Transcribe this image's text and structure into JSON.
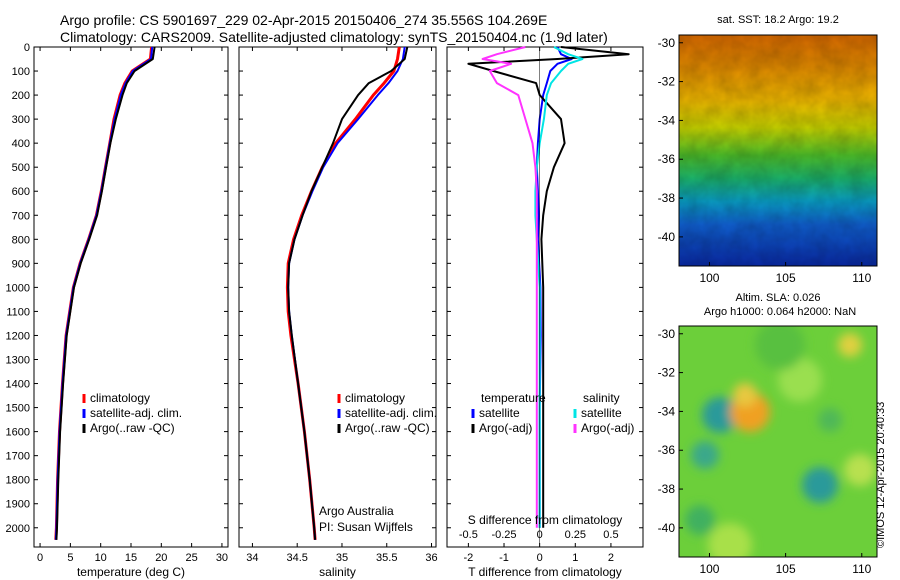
{
  "header": {
    "line1": "Argo profile: CS 5901697_229 02-Apr-2015 20150406_274 35.556S 104.269E",
    "line2": "Climatology: CARS2009. Satellite-adjusted climatology: synTS_20150404.nc (1.9d later)"
  },
  "colors": {
    "climatology": "#ff0000",
    "satellite": "#0000ff",
    "argo": "#000000",
    "sat_salinity": "#00e5e5",
    "argo_salinity": "#ff33ff"
  },
  "depth_ticks": [
    "0",
    "100",
    "200",
    "300",
    "400",
    "500",
    "600",
    "700",
    "800",
    "900",
    "1000",
    "1100",
    "1200",
    "1300",
    "1400",
    "1500",
    "1600",
    "1700",
    "1800",
    "1900",
    "2000"
  ],
  "chart_data": [
    {
      "type": "line",
      "name": "temperature-profile",
      "xlabel": "temperature (deg C)",
      "xlim": [
        -1,
        31
      ],
      "ylim": [
        2080,
        0
      ],
      "xticks": [
        "0",
        "5",
        "10",
        "15",
        "20",
        "25",
        "30"
      ],
      "legend": [
        "climatology",
        "satellite-adj. clim.",
        "Argo(..raw -QC)"
      ],
      "depth": [
        0,
        50,
        100,
        150,
        200,
        300,
        400,
        500,
        600,
        700,
        800,
        900,
        1000,
        1200,
        1400,
        1600,
        1800,
        2000,
        2050
      ],
      "series": [
        {
          "name": "climatology",
          "values": [
            18.4,
            18.2,
            15.2,
            14.0,
            13.2,
            12.2,
            11.5,
            10.8,
            10.1,
            9.3,
            8.0,
            6.6,
            5.5,
            4.3,
            3.7,
            3.2,
            2.9,
            2.7,
            2.6
          ]
        },
        {
          "name": "satellite-adj. clim.",
          "values": [
            18.5,
            18.3,
            15.3,
            14.1,
            13.3,
            12.3,
            11.5,
            10.8,
            10.1,
            9.3,
            8.0,
            6.6,
            5.5,
            4.3,
            3.7,
            3.2,
            2.9,
            2.7,
            2.6
          ]
        },
        {
          "name": "Argo(..raw -QC)",
          "values": [
            18.9,
            18.6,
            15.6,
            14.3,
            13.6,
            12.5,
            11.6,
            10.9,
            10.2,
            9.4,
            8.1,
            6.7,
            5.6,
            4.4,
            3.8,
            3.3,
            3.0,
            2.8,
            2.7
          ]
        }
      ]
    },
    {
      "type": "line",
      "name": "salinity-profile",
      "xlabel": "salinity",
      "xlim": [
        33.85,
        36.05
      ],
      "ylim": [
        2080,
        0
      ],
      "xticks": [
        "34",
        "34.5",
        "35",
        "35.5",
        "36"
      ],
      "legend": [
        "climatology",
        "satellite-adj. clim.",
        "Argo(..raw -QC)"
      ],
      "annotation": [
        "Argo Australia",
        "PI: Susan Wijffels"
      ],
      "depth": [
        0,
        50,
        100,
        150,
        200,
        300,
        400,
        500,
        600,
        700,
        800,
        900,
        1000,
        1100,
        1200,
        1400,
        1600,
        1800,
        2000,
        2050
      ],
      "series": [
        {
          "name": "climatology",
          "values": [
            35.64,
            35.62,
            35.58,
            35.47,
            35.35,
            35.15,
            34.93,
            34.78,
            34.66,
            34.55,
            34.46,
            34.4,
            34.39,
            34.4,
            34.43,
            34.51,
            34.58,
            34.64,
            34.69,
            34.7
          ]
        },
        {
          "name": "satellite-adj. clim.",
          "values": [
            35.7,
            35.68,
            35.62,
            35.52,
            35.4,
            35.18,
            34.95,
            34.79,
            34.67,
            34.56,
            34.47,
            34.41,
            34.4,
            34.41,
            34.44,
            34.51,
            34.58,
            34.64,
            34.69,
            34.7
          ]
        },
        {
          "name": "Argo(..raw -QC)",
          "values": [
            35.73,
            35.7,
            35.55,
            35.3,
            35.18,
            35.0,
            34.9,
            34.78,
            34.66,
            34.56,
            34.47,
            34.41,
            34.4,
            34.41,
            34.44,
            34.51,
            34.58,
            34.64,
            34.69,
            34.7
          ]
        }
      ]
    },
    {
      "type": "line",
      "name": "difference-profile",
      "xlabel": "T difference from climatology",
      "x2label": "S difference from climatology",
      "xlim": [
        -2.6,
        2.9
      ],
      "ylim": [
        2080,
        0
      ],
      "xticks": [
        "-2",
        "-1",
        "0",
        "1",
        "2"
      ],
      "x2ticks": [
        "-0.5",
        "-0.25",
        "0",
        "0.25",
        "0.5"
      ],
      "legend_headers": [
        "temperature",
        "salinity"
      ],
      "legend_temperature": [
        "satellite",
        "Argo(-adj)"
      ],
      "legend_salinity": [
        "satellite",
        "Argo(-adj)"
      ],
      "depth": [
        0,
        30,
        50,
        70,
        100,
        150,
        200,
        300,
        400,
        500,
        600,
        700,
        800,
        1000,
        1200,
        1500,
        1800,
        2000
      ],
      "series": [
        {
          "name": "temperature satellite",
          "values": [
            0.5,
            0.6,
            0.9,
            0.5,
            0.3,
            0.2,
            0.1,
            0.0,
            -0.05,
            -0.08,
            -0.05,
            -0.03,
            -0.05,
            0.02,
            0.03,
            0.0,
            0.0,
            0.0
          ]
        },
        {
          "name": "temperature Argo(-adj)",
          "values": [
            0.6,
            2.5,
            0.5,
            -2.0,
            -1.3,
            -0.1,
            0.0,
            0.6,
            0.7,
            0.4,
            0.2,
            0.1,
            0.05,
            0.1,
            0.1,
            0.1,
            0.1,
            0.1
          ]
        },
        {
          "name": "salinity satellite",
          "values": [
            0.1,
            0.2,
            0.3,
            0.2,
            0.15,
            0.08,
            0.05,
            0.03,
            0.0,
            -0.02,
            -0.03,
            -0.03,
            -0.02,
            0.0,
            0.0,
            0.0,
            0.0,
            0.0
          ]
        },
        {
          "name": "salinity Argo(-adj)",
          "values": [
            -0.1,
            -0.3,
            -0.4,
            -0.2,
            -0.35,
            -0.3,
            -0.15,
            -0.1,
            -0.05,
            -0.03,
            -0.02,
            -0.02,
            -0.02,
            -0.02,
            -0.02,
            -0.02,
            -0.02,
            -0.02
          ]
        }
      ]
    },
    {
      "type": "heatmap",
      "name": "sst-map",
      "title": "sat. SST: 18.2  Argo: 19.2",
      "xlim": [
        98,
        111
      ],
      "ylim": [
        -41.5,
        -29.6
      ],
      "xticks": [
        "100",
        "105",
        "110"
      ],
      "yticks": [
        "-30",
        "-32",
        "-34",
        "-36",
        "-38",
        "-40"
      ]
    },
    {
      "type": "heatmap",
      "name": "sla-map",
      "title_lines": [
        "Altim. SLA: 0.026",
        "Argo h1000: 0.064  h2000: NaN"
      ],
      "xlim": [
        98,
        111
      ],
      "ylim": [
        -41.5,
        -29.6
      ],
      "xticks": [
        "100",
        "105",
        "110"
      ],
      "yticks": [
        "-30",
        "-32",
        "-34",
        "-36",
        "-38",
        "-40"
      ]
    }
  ],
  "footer": {
    "stamp": "©IMOS 12-Apr-2015 20:40:33"
  }
}
